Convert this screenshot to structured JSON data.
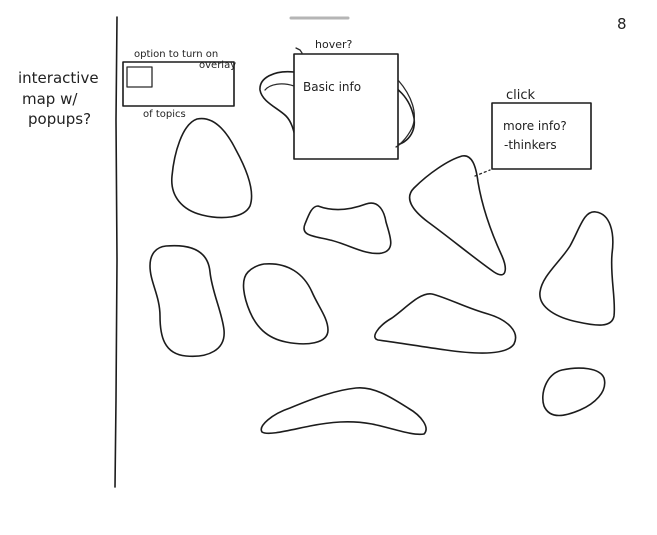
{
  "page_number": "8",
  "side_note": {
    "lines": [
      "interactive",
      "map w/",
      "popups?"
    ]
  },
  "overlay_toggle": {
    "label_top_line1": "option to turn on",
    "label_top_line2": "overlay",
    "label_bottom": "of topics"
  },
  "hover_popup": {
    "label": "hover?",
    "content": "Basic info"
  },
  "click_popup": {
    "label": "click",
    "content_line1": "more info?",
    "content_line2": "-thinkers"
  },
  "map_regions": [
    {
      "name": "region-1"
    },
    {
      "name": "region-2"
    },
    {
      "name": "region-3"
    },
    {
      "name": "region-4"
    },
    {
      "name": "region-5"
    },
    {
      "name": "region-6"
    },
    {
      "name": "region-7"
    },
    {
      "name": "region-8"
    },
    {
      "name": "region-9"
    },
    {
      "name": "region-10"
    },
    {
      "name": "region-11"
    },
    {
      "name": "region-12"
    }
  ]
}
